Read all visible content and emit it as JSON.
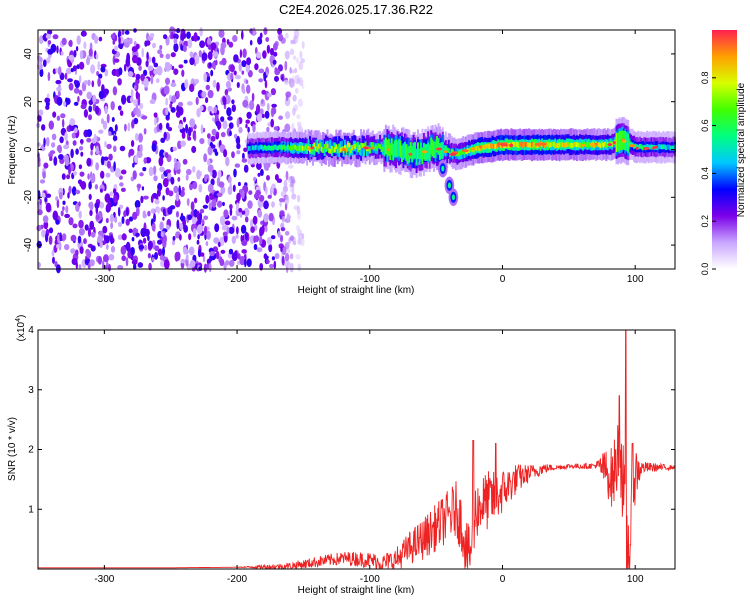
{
  "figure": {
    "title": "C2E4.2026.025.17.36.R22"
  },
  "chart_data": [
    {
      "type": "heatmap",
      "xlabel": "Height of straight line (km)",
      "ylabel": "Frequency (Hz)",
      "xlim": [
        -350,
        130
      ],
      "ylim": [
        -50,
        50
      ],
      "xticks": [
        -300,
        -200,
        -100,
        0,
        100
      ],
      "yticks": [
        -40,
        -20,
        0,
        20,
        40
      ],
      "grid": false,
      "colorbar": {
        "label": "Normalized spectral amplitude",
        "range": [
          0,
          1
        ],
        "ticks": [
          "0.0",
          "0.2",
          "0.4",
          "0.6",
          "0.8"
        ],
        "colors": [
          "#ffffff",
          "#c9a6ff",
          "#7c00e8",
          "#0000ff",
          "#00c8ff",
          "#00ff80",
          "#40ff00",
          "#d8ff00",
          "#ffa000",
          "#ff2050"
        ]
      },
      "regions": [
        {
          "description_note": "noise",
          "x": [
            -350,
            -160
          ],
          "freq": [
            -50,
            50
          ],
          "amplitude": 0.15
        },
        {
          "x": [
            -190,
            -160
          ],
          "freq": [
            -2,
            2
          ],
          "amplitude": 0.5
        }
      ],
      "ridge": [
        {
          "x": -190,
          "freq": 0.5,
          "amplitude": 0.45
        },
        {
          "x": -170,
          "freq": 1,
          "amplitude": 0.55
        },
        {
          "x": -150,
          "freq": 0.5,
          "amplitude": 0.7
        },
        {
          "x": -130,
          "freq": 0.5,
          "amplitude": 0.75
        },
        {
          "x": -110,
          "freq": 0.5,
          "amplitude": 0.75
        },
        {
          "x": -95,
          "freq": 1,
          "amplitude": 0.6
        },
        {
          "x": -80,
          "freq": 0,
          "amplitude": 0.6
        },
        {
          "x": -65,
          "freq": -2,
          "amplitude": 0.55
        },
        {
          "x": -50,
          "freq": 1,
          "amplitude": 0.6
        },
        {
          "x": -35,
          "freq": -2,
          "amplitude": 0.6
        },
        {
          "x": -20,
          "freq": 0.5,
          "amplitude": 0.8
        },
        {
          "x": 0,
          "freq": 2,
          "amplitude": 0.85
        },
        {
          "x": 20,
          "freq": 2,
          "amplitude": 0.85
        },
        {
          "x": 40,
          "freq": 2,
          "amplitude": 0.8
        },
        {
          "x": 60,
          "freq": 2,
          "amplitude": 0.75
        },
        {
          "x": 80,
          "freq": 2,
          "amplitude": 0.7
        },
        {
          "x": 90,
          "freq": 4,
          "amplitude": 0.6
        },
        {
          "x": 100,
          "freq": 1,
          "amplitude": 0.55
        },
        {
          "x": 130,
          "freq": 1,
          "amplitude": 0.45
        }
      ],
      "branch": [
        {
          "x": -45,
          "freq": -8
        },
        {
          "x": -40,
          "freq": -15
        },
        {
          "x": -37,
          "freq": -20
        }
      ]
    },
    {
      "type": "line",
      "xlabel": "Height of straight line (km)",
      "ylabel": "SNR (10 * v/v)",
      "yscale_label": "(x10",
      "yscale_exponent": "4",
      "yscale_suffix": ")",
      "xlim": [
        -350,
        130
      ],
      "ylim": [
        0,
        4
      ],
      "xticks": [
        -300,
        -200,
        -100,
        0,
        100
      ],
      "yticks": [
        1,
        2,
        3,
        4
      ],
      "grid": false,
      "series": [
        {
          "color": "#ee2222",
          "x": [
            -350,
            -300,
            -250,
            -200,
            -170,
            -160,
            -150,
            -140,
            -130,
            -120,
            -110,
            -100,
            -90,
            -80,
            -70,
            -60,
            -55,
            -50,
            -45,
            -40,
            -35,
            -30,
            -28,
            -25,
            -22,
            -20,
            -15,
            -10,
            -5,
            0,
            5,
            10,
            15,
            20,
            30,
            40,
            50,
            60,
            70,
            75,
            80,
            83,
            86,
            88,
            90,
            92,
            93,
            95,
            97,
            98,
            100,
            105,
            110,
            120,
            130
          ],
          "y": [
            0.02,
            0.02,
            0.02,
            0.03,
            0.04,
            0.05,
            0.08,
            0.12,
            0.15,
            0.18,
            0.17,
            0.15,
            0.1,
            0.15,
            0.35,
            0.5,
            0.6,
            0.7,
            0.8,
            0.9,
            1.0,
            0.7,
            0.4,
            0.2,
            0.6,
            1.0,
            1.1,
            1.15,
            1.2,
            1.3,
            1.4,
            1.5,
            1.55,
            1.6,
            1.68,
            1.7,
            1.72,
            1.72,
            1.73,
            1.7,
            1.6,
            1.5,
            1.8,
            2.0,
            1.7,
            1.0,
            0.5,
            0.3,
            0.6,
            1.2,
            1.6,
            1.7,
            1.7,
            1.7,
            1.7
          ],
          "peaks": [
            {
              "x": -5,
              "y": 2.1
            },
            {
              "x": -22,
              "y": 2.15
            },
            {
              "x": 88,
              "y": 2.9
            },
            {
              "x": 93,
              "y": 4.1
            },
            {
              "x": 98,
              "y": 2.1
            }
          ],
          "noise_amplitude": [
            {
              "x": -150,
              "a": 0.08
            },
            {
              "x": -90,
              "a": 0.15
            },
            {
              "x": -60,
              "a": 0.35
            },
            {
              "x": -30,
              "a": 0.5
            },
            {
              "x": -10,
              "a": 0.5
            },
            {
              "x": 20,
              "a": 0.15
            },
            {
              "x": 40,
              "a": 0.04
            },
            {
              "x": 70,
              "a": 0.05
            },
            {
              "x": 80,
              "a": 0.45
            },
            {
              "x": 95,
              "a": 0.9
            },
            {
              "x": 105,
              "a": 0.1
            },
            {
              "x": 130,
              "a": 0.03
            }
          ]
        }
      ]
    }
  ]
}
